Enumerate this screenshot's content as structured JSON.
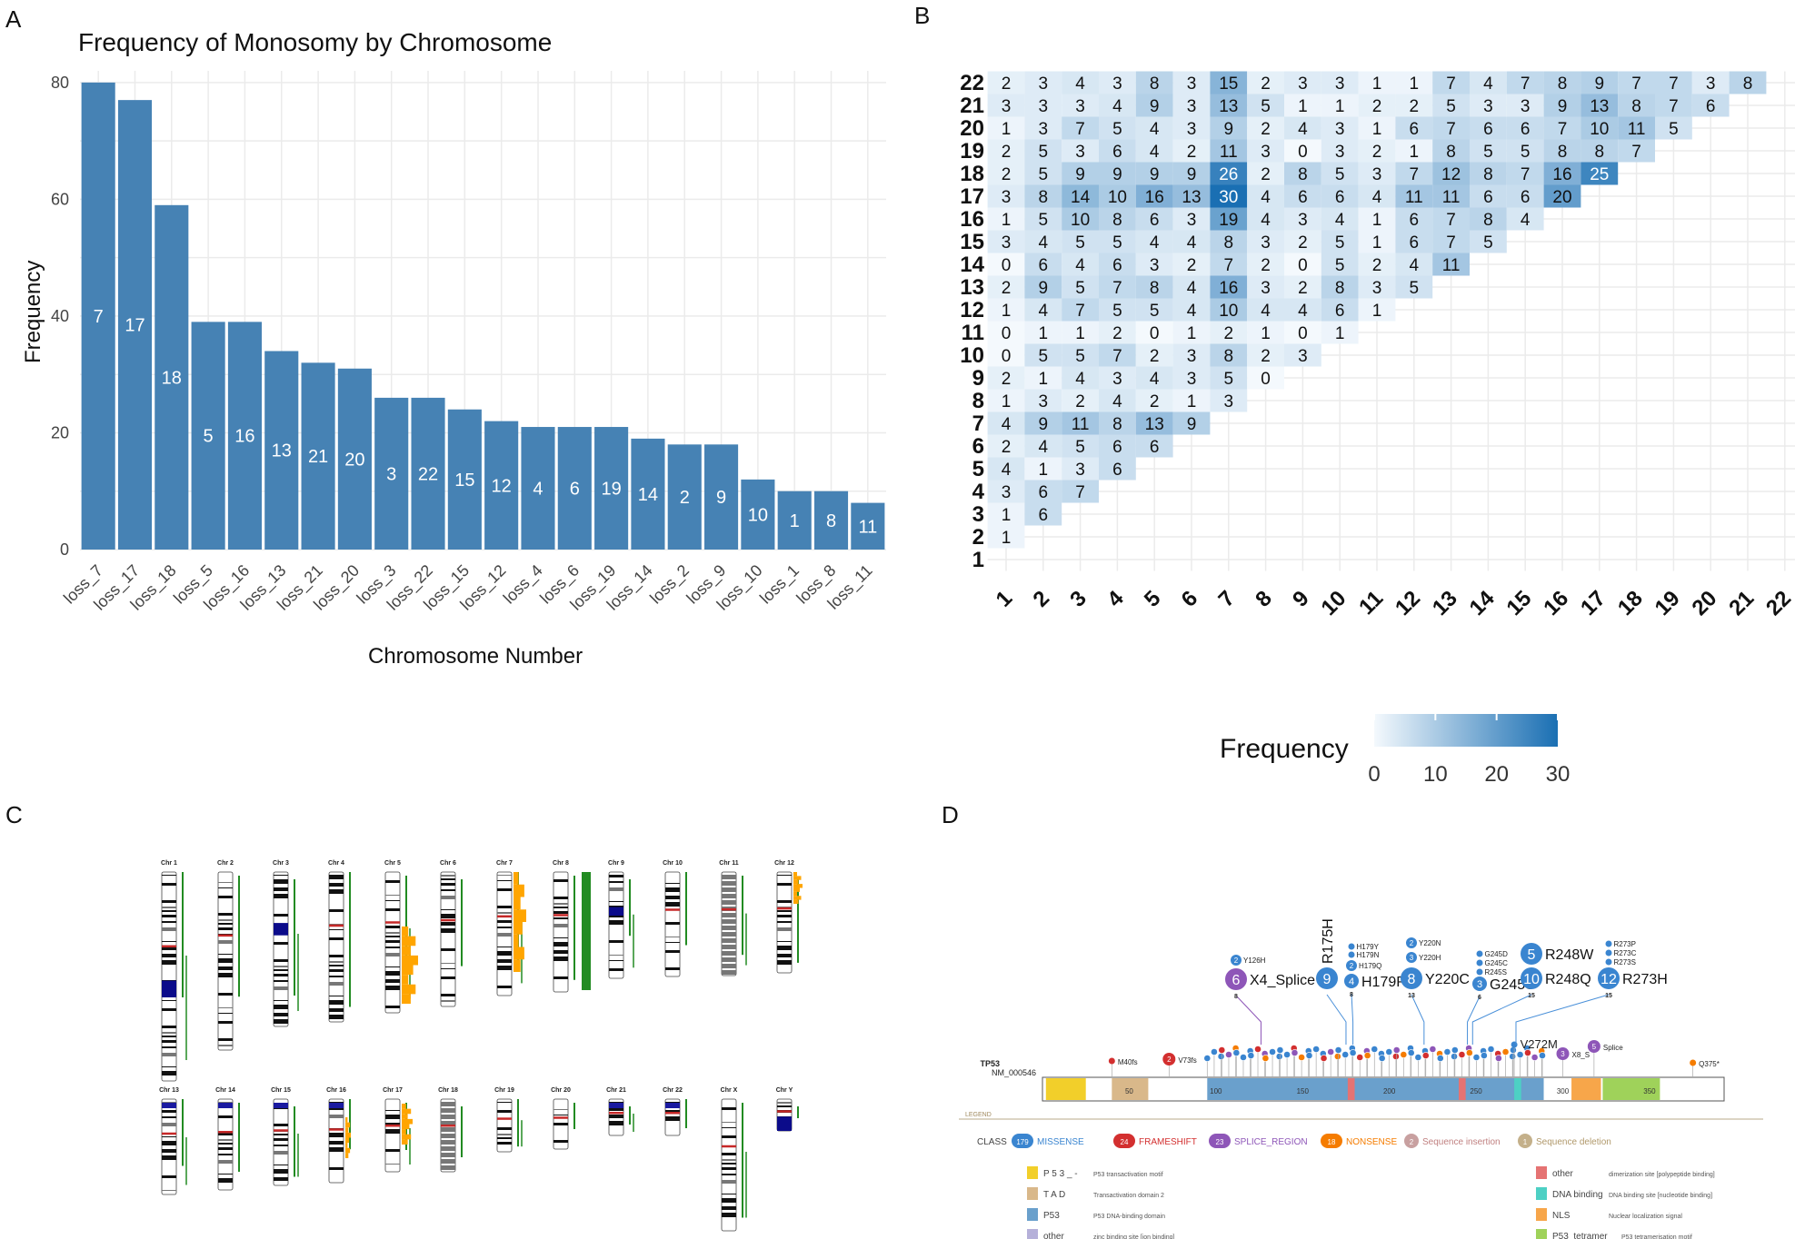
{
  "panel_letters": {
    "a": "A",
    "b": "B",
    "c": "C",
    "d": "D"
  },
  "colors": {
    "bar": "#4682b4",
    "heat_low": "#f4f9fd",
    "heat_high": "#1a6fb3",
    "green": "#228b22",
    "orange": "#ffa500",
    "missense": "#3a85d0",
    "frameshift": "#d32f2f",
    "splice": "#8e56b8",
    "nonsense": "#f57c00",
    "ins": "#c8a0a0",
    "del": "#c4b08a"
  },
  "chart_data": [
    {
      "type": "bar",
      "title": "Frequency of Monosomy by Chromosome",
      "xlabel": "Chromosome Number",
      "ylabel": "Frequency",
      "ylim": [
        0,
        82
      ],
      "yticks": [
        0,
        20,
        40,
        60,
        80
      ],
      "categories": [
        "loss_7",
        "loss_17",
        "loss_18",
        "loss_5",
        "loss_16",
        "loss_13",
        "loss_21",
        "loss_20",
        "loss_3",
        "loss_22",
        "loss_15",
        "loss_12",
        "loss_4",
        "loss_6",
        "loss_19",
        "loss_14",
        "loss_2",
        "loss_9",
        "loss_10",
        "loss_1",
        "loss_8",
        "loss_11"
      ],
      "bar_labels": [
        "7",
        "17",
        "18",
        "5",
        "16",
        "13",
        "21",
        "20",
        "3",
        "22",
        "15",
        "12",
        "4",
        "6",
        "19",
        "14",
        "2",
        "9",
        "10",
        "1",
        "8",
        "11"
      ],
      "values": [
        80,
        77,
        59,
        39,
        39,
        34,
        32,
        31,
        26,
        26,
        24,
        22,
        21,
        21,
        21,
        19,
        18,
        18,
        12,
        10,
        10,
        8
      ]
    },
    {
      "type": "heatmap",
      "title": "",
      "legend_title": "Frequency",
      "legend_ticks": [
        "0",
        "10",
        "20",
        "30"
      ],
      "scale_max": 30,
      "x_labels": [
        "1",
        "2",
        "3",
        "4",
        "5",
        "6",
        "7",
        "8",
        "9",
        "10",
        "11",
        "12",
        "13",
        "14",
        "15",
        "16",
        "17",
        "18",
        "19",
        "20",
        "21",
        "22"
      ],
      "y_labels": [
        "1",
        "2",
        "3",
        "4",
        "5",
        "6",
        "7",
        "8",
        "9",
        "10",
        "11",
        "12",
        "13",
        "14",
        "15",
        "16",
        "17",
        "18",
        "19",
        "20",
        "21",
        "22"
      ],
      "rows": [
        {
          "chr": "2",
          "values": [
            1
          ]
        },
        {
          "chr": "3",
          "values": [
            1,
            6
          ]
        },
        {
          "chr": "4",
          "values": [
            3,
            6,
            7
          ]
        },
        {
          "chr": "5",
          "values": [
            4,
            1,
            3,
            6
          ]
        },
        {
          "chr": "6",
          "values": [
            2,
            4,
            5,
            6,
            6
          ]
        },
        {
          "chr": "7",
          "values": [
            4,
            9,
            11,
            8,
            13,
            9
          ]
        },
        {
          "chr": "8",
          "values": [
            1,
            3,
            2,
            4,
            2,
            1,
            3
          ]
        },
        {
          "chr": "9",
          "values": [
            2,
            1,
            4,
            3,
            4,
            3,
            5,
            0
          ]
        },
        {
          "chr": "10",
          "values": [
            0,
            5,
            5,
            7,
            2,
            3,
            8,
            2,
            3
          ]
        },
        {
          "chr": "11",
          "values": [
            0,
            1,
            1,
            2,
            0,
            1,
            2,
            1,
            0,
            1
          ]
        },
        {
          "chr": "12",
          "values": [
            1,
            4,
            7,
            5,
            5,
            4,
            10,
            4,
            4,
            6,
            1
          ]
        },
        {
          "chr": "13",
          "values": [
            2,
            9,
            5,
            7,
            8,
            4,
            16,
            3,
            2,
            8,
            3,
            5
          ]
        },
        {
          "chr": "14",
          "values": [
            0,
            6,
            4,
            6,
            3,
            2,
            7,
            2,
            0,
            5,
            2,
            4,
            11
          ]
        },
        {
          "chr": "15",
          "values": [
            3,
            4,
            5,
            5,
            4,
            4,
            8,
            3,
            2,
            5,
            1,
            6,
            7,
            5
          ]
        },
        {
          "chr": "16",
          "values": [
            1,
            5,
            10,
            8,
            6,
            3,
            19,
            4,
            3,
            4,
            1,
            6,
            7,
            8,
            4
          ]
        },
        {
          "chr": "17",
          "values": [
            3,
            8,
            14,
            10,
            16,
            13,
            30,
            4,
            6,
            6,
            4,
            11,
            11,
            6,
            6,
            20
          ]
        },
        {
          "chr": "18",
          "values": [
            2,
            5,
            9,
            9,
            9,
            9,
            26,
            2,
            8,
            5,
            3,
            7,
            12,
            8,
            7,
            16,
            25
          ]
        },
        {
          "chr": "19",
          "values": [
            2,
            5,
            3,
            6,
            4,
            2,
            11,
            3,
            0,
            3,
            2,
            1,
            8,
            5,
            5,
            8,
            8,
            7
          ]
        },
        {
          "chr": "20",
          "values": [
            1,
            3,
            7,
            5,
            4,
            3,
            9,
            2,
            4,
            3,
            1,
            6,
            7,
            6,
            6,
            7,
            10,
            11,
            5
          ]
        },
        {
          "chr": "21",
          "values": [
            3,
            3,
            3,
            4,
            9,
            3,
            13,
            5,
            1,
            1,
            2,
            2,
            5,
            3,
            3,
            9,
            13,
            8,
            7,
            6
          ]
        },
        {
          "chr": "22",
          "values": [
            2,
            3,
            4,
            3,
            8,
            3,
            15,
            2,
            3,
            3,
            1,
            1,
            7,
            4,
            7,
            8,
            9,
            7,
            7,
            3,
            8
          ]
        }
      ]
    }
  ],
  "karyogram": {
    "row1": [
      "Chr 1",
      "Chr 2",
      "Chr 3",
      "Chr 4",
      "Chr 5",
      "Chr 6",
      "Chr 7",
      "Chr 8",
      "Chr 9",
      "Chr 10",
      "Chr 11",
      "Chr 12"
    ],
    "row2": [
      "Chr 13",
      "Chr 14",
      "Chr 15",
      "Chr 16",
      "Chr 17",
      "Chr 18",
      "Chr 19",
      "Chr 20",
      "Chr 21",
      "Chr 22",
      "Chr X",
      "Chr Y"
    ]
  },
  "lollipop": {
    "gene": "TP53",
    "transcript": "NM_000546",
    "axis_ticks": [
      "50",
      "100",
      "150",
      "200",
      "250",
      "300",
      "350"
    ],
    "legend_title": "LEGEND",
    "class_label": "CLASS",
    "classes": [
      {
        "count": "179",
        "label": "MISSENSE"
      },
      {
        "count": "24",
        "label": "FRAMESHIFT"
      },
      {
        "count": "23",
        "label": "SPLICE_REGION"
      },
      {
        "count": "18",
        "label": "NONSENSE"
      },
      {
        "count": "2",
        "label": "Sequence insertion"
      },
      {
        "count": "1",
        "label": "Sequence deletion"
      }
    ],
    "domains_left": [
      {
        "name": "P 5 3 _ -",
        "desc": "P53 transactivation motif"
      },
      {
        "name": "T A D",
        "desc": "Transactivation domain 2"
      },
      {
        "name": "P53",
        "desc": "P53 DNA-binding domain"
      },
      {
        "name": "other",
        "desc": "zinc binding site [ion binding]"
      }
    ],
    "domains_right": [
      {
        "name": "other",
        "desc": "dimerization site [polypeptide binding]"
      },
      {
        "name": "DNA binding",
        "desc": "DNA binding site [nucleotide binding]"
      },
      {
        "name": "NLS",
        "desc": "Nuclear localization signal"
      },
      {
        "name": "P53_tetramer",
        "desc": "P53 tetramerisation motif"
      }
    ],
    "big_labels": [
      {
        "count": "6",
        "label": "X4_Splice",
        "sub": "8"
      },
      {
        "count": "9",
        "label": "R175H",
        "sub": ""
      },
      {
        "count": "4",
        "label": "H179R",
        "sub": "8"
      },
      {
        "count": "8",
        "label": "Y220C",
        "sub": "13"
      },
      {
        "count": "3",
        "label": "G245S",
        "sub": "6"
      },
      {
        "count": "5",
        "label": "R248W",
        "sub": ""
      },
      {
        "count": "10",
        "label": "R248Q",
        "sub": "15"
      },
      {
        "count": "12",
        "label": "R273H",
        "sub": "15"
      }
    ],
    "small_labels": [
      {
        "count": "2",
        "label": "Y126H"
      },
      {
        "count": "",
        "label": "H179Y"
      },
      {
        "count": "",
        "label": "H179N"
      },
      {
        "count": "2",
        "label": "H179Q"
      },
      {
        "count": "2",
        "label": "Y220N"
      },
      {
        "count": "3",
        "label": "Y220H"
      },
      {
        "count": "",
        "label": "G245D"
      },
      {
        "count": "",
        "label": "G245C"
      },
      {
        "count": "",
        "label": "R245S"
      },
      {
        "count": "",
        "label": "R273P"
      },
      {
        "count": "",
        "label": "R273C"
      },
      {
        "count": "",
        "label": "R273S"
      }
    ],
    "lower_labels": [
      {
        "count": "",
        "label": "M40fs"
      },
      {
        "count": "2",
        "label": "V73fs"
      },
      {
        "count": "",
        "label": "V272M"
      },
      {
        "count": "3",
        "label": "X8_S"
      },
      {
        "count": "5",
        "label": "Splice"
      },
      {
        "count": "",
        "label": "Q375*"
      }
    ]
  }
}
